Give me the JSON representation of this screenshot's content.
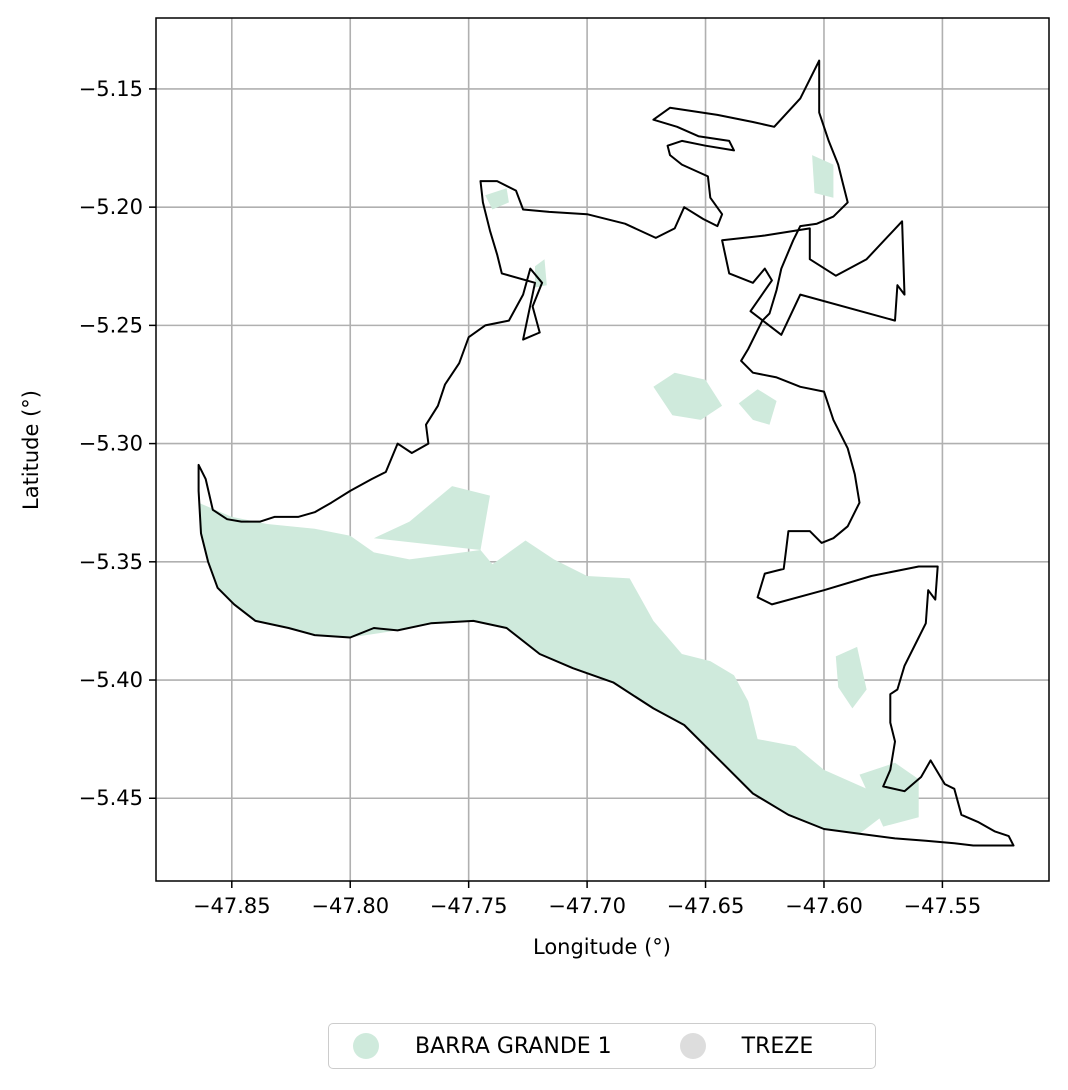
{
  "chart_data": {
    "type": "map",
    "title": "",
    "xlabel": "Longitude (°)",
    "ylabel": "Latitude (°)",
    "xlim": [
      -47.882,
      -47.505
    ],
    "ylim": [
      -5.485,
      -5.12
    ],
    "xticks": [
      -47.85,
      -47.8,
      -47.75,
      -47.7,
      -47.65,
      -47.6,
      -47.55
    ],
    "xtick_labels": [
      "−47.85",
      "−47.80",
      "−47.75",
      "−47.70",
      "−47.65",
      "−47.60",
      "−47.55"
    ],
    "yticks": [
      -5.15,
      -5.2,
      -5.25,
      -5.3,
      -5.35,
      -5.4,
      -5.45
    ],
    "ytick_labels": [
      "−5.15",
      "−5.20",
      "−5.25",
      "−5.30",
      "−5.35",
      "−5.40",
      "−5.45"
    ],
    "grid": true,
    "legend_position": "bottom-center",
    "series": [
      {
        "name": "BARRA GRANDE 1",
        "color": "#cfeadc"
      },
      {
        "name": "TREZE",
        "color": "#dddddd"
      }
    ],
    "boundary_color": "#000000",
    "boundary": [
      [
        -47.864,
        -5.309
      ],
      [
        -47.861,
        -5.315
      ],
      [
        -47.858,
        -5.328
      ],
      [
        -47.852,
        -5.332
      ],
      [
        -47.846,
        -5.333
      ],
      [
        -47.838,
        -5.333
      ],
      [
        -47.832,
        -5.331
      ],
      [
        -47.822,
        -5.331
      ],
      [
        -47.815,
        -5.329
      ],
      [
        -47.808,
        -5.325
      ],
      [
        -47.8,
        -5.32
      ],
      [
        -47.791,
        -5.315
      ],
      [
        -47.785,
        -5.312
      ],
      [
        -47.78,
        -5.3
      ],
      [
        -47.774,
        -5.304
      ],
      [
        -47.767,
        -5.3
      ],
      [
        -47.768,
        -5.292
      ],
      [
        -47.763,
        -5.284
      ],
      [
        -47.76,
        -5.275
      ],
      [
        -47.754,
        -5.266
      ],
      [
        -47.75,
        -5.255
      ],
      [
        -47.743,
        -5.25
      ],
      [
        -47.733,
        -5.248
      ],
      [
        -47.727,
        -5.237
      ],
      [
        -47.724,
        -5.226
      ],
      [
        -47.719,
        -5.232
      ],
      [
        -47.723,
        -5.242
      ],
      [
        -47.72,
        -5.253
      ],
      [
        -47.727,
        -5.256
      ],
      [
        -47.722,
        -5.232
      ],
      [
        -47.736,
        -5.228
      ],
      [
        -47.738,
        -5.22
      ],
      [
        -47.741,
        -5.21
      ],
      [
        -47.744,
        -5.198
      ],
      [
        -47.745,
        -5.189
      ],
      [
        -47.738,
        -5.189
      ],
      [
        -47.73,
        -5.193
      ],
      [
        -47.727,
        -5.201
      ],
      [
        -47.716,
        -5.202
      ],
      [
        -47.7,
        -5.203
      ],
      [
        -47.684,
        -5.207
      ],
      [
        -47.671,
        -5.213
      ],
      [
        -47.663,
        -5.209
      ],
      [
        -47.659,
        -5.2
      ],
      [
        -47.651,
        -5.205
      ],
      [
        -47.645,
        -5.208
      ],
      [
        -47.643,
        -5.203
      ],
      [
        -47.648,
        -5.196
      ],
      [
        -47.649,
        -5.187
      ],
      [
        -47.66,
        -5.182
      ],
      [
        -47.665,
        -5.178
      ],
      [
        -47.666,
        -5.174
      ],
      [
        -47.66,
        -5.172
      ],
      [
        -47.65,
        -5.174
      ],
      [
        -47.638,
        -5.176
      ],
      [
        -47.64,
        -5.172
      ],
      [
        -47.653,
        -5.17
      ],
      [
        -47.662,
        -5.166
      ],
      [
        -47.672,
        -5.163
      ],
      [
        -47.665,
        -5.158
      ],
      [
        -47.645,
        -5.161
      ],
      [
        -47.63,
        -5.164
      ],
      [
        -47.621,
        -5.166
      ],
      [
        -47.61,
        -5.154
      ],
      [
        -47.602,
        -5.138
      ],
      [
        -47.602,
        -5.16
      ],
      [
        -47.598,
        -5.172
      ],
      [
        -47.594,
        -5.182
      ],
      [
        -47.592,
        -5.19
      ],
      [
        -47.59,
        -5.198
      ],
      [
        -47.596,
        -5.204
      ],
      [
        -47.603,
        -5.207
      ],
      [
        -47.61,
        -5.208
      ],
      [
        -47.613,
        -5.214
      ],
      [
        -47.618,
        -5.226
      ],
      [
        -47.62,
        -5.235
      ],
      [
        -47.623,
        -5.245
      ],
      [
        -47.626,
        -5.248
      ],
      [
        -47.628,
        -5.252
      ],
      [
        -47.632,
        -5.26
      ],
      [
        -47.635,
        -5.265
      ],
      [
        -47.63,
        -5.27
      ],
      [
        -47.62,
        -5.272
      ],
      [
        -47.61,
        -5.276
      ],
      [
        -47.6,
        -5.278
      ],
      [
        -47.596,
        -5.29
      ],
      [
        -47.59,
        -5.302
      ],
      [
        -47.587,
        -5.313
      ],
      [
        -47.585,
        -5.325
      ],
      [
        -47.59,
        -5.335
      ],
      [
        -47.596,
        -5.34
      ],
      [
        -47.601,
        -5.342
      ],
      [
        -47.606,
        -5.337
      ],
      [
        -47.615,
        -5.337
      ],
      [
        -47.616,
        -5.345
      ],
      [
        -47.617,
        -5.353
      ],
      [
        -47.625,
        -5.355
      ],
      [
        -47.628,
        -5.365
      ],
      [
        -47.622,
        -5.368
      ],
      [
        -47.6,
        -5.362
      ],
      [
        -47.58,
        -5.356
      ],
      [
        -47.56,
        -5.352
      ],
      [
        -47.552,
        -5.352
      ],
      [
        -47.553,
        -5.366
      ],
      [
        -47.556,
        -5.362
      ],
      [
        -47.557,
        -5.376
      ],
      [
        -47.56,
        -5.382
      ],
      [
        -47.566,
        -5.394
      ],
      [
        -47.569,
        -5.404
      ],
      [
        -47.572,
        -5.406
      ],
      [
        -47.572,
        -5.418
      ],
      [
        -47.57,
        -5.426
      ],
      [
        -47.572,
        -5.438
      ],
      [
        -47.575,
        -5.445
      ],
      [
        -47.566,
        -5.447
      ],
      [
        -47.559,
        -5.441
      ],
      [
        -47.555,
        -5.434
      ],
      [
        -47.549,
        -5.444
      ],
      [
        -47.545,
        -5.446
      ],
      [
        -47.542,
        -5.457
      ],
      [
        -47.535,
        -5.46
      ],
      [
        -47.528,
        -5.464
      ],
      [
        -47.522,
        -5.466
      ],
      [
        -47.52,
        -5.47
      ],
      [
        -47.537,
        -5.47
      ],
      [
        -47.545,
        -5.469
      ],
      [
        -47.557,
        -5.468
      ],
      [
        -47.57,
        -5.467
      ],
      [
        -47.585,
        -5.465
      ],
      [
        -47.6,
        -5.463
      ],
      [
        -47.615,
        -5.457
      ],
      [
        -47.63,
        -5.448
      ],
      [
        -47.644,
        -5.434
      ],
      [
        -47.659,
        -5.419
      ],
      [
        -47.672,
        -5.412
      ],
      [
        -47.689,
        -5.401
      ],
      [
        -47.706,
        -5.395
      ],
      [
        -47.72,
        -5.389
      ],
      [
        -47.734,
        -5.378
      ],
      [
        -47.748,
        -5.375
      ],
      [
        -47.766,
        -5.376
      ],
      [
        -47.78,
        -5.379
      ],
      [
        -47.79,
        -5.378
      ],
      [
        -47.8,
        -5.382
      ],
      [
        -47.815,
        -5.381
      ],
      [
        -47.826,
        -5.378
      ],
      [
        -47.84,
        -5.375
      ],
      [
        -47.849,
        -5.368
      ],
      [
        -47.856,
        -5.361
      ],
      [
        -47.86,
        -5.35
      ],
      [
        -47.863,
        -5.338
      ],
      [
        -47.864,
        -5.32
      ]
    ],
    "inner_boundary": [
      [
        -47.567,
        -5.206
      ],
      [
        -47.566,
        -5.237
      ],
      [
        -47.569,
        -5.233
      ],
      [
        -47.57,
        -5.248
      ],
      [
        -47.61,
        -5.237
      ],
      [
        -47.618,
        -5.254
      ],
      [
        -47.631,
        -5.244
      ],
      [
        -47.622,
        -5.231
      ],
      [
        -47.625,
        -5.226
      ],
      [
        -47.63,
        -5.232
      ],
      [
        -47.64,
        -5.228
      ],
      [
        -47.643,
        -5.214
      ],
      [
        -47.625,
        -5.212
      ],
      [
        -47.606,
        -5.209
      ],
      [
        -47.606,
        -5.222
      ],
      [
        -47.595,
        -5.229
      ],
      [
        -47.582,
        -5.222
      ],
      [
        -47.567,
        -5.206
      ]
    ],
    "regions_barra_grande_1": [
      [
        [
          -47.864,
          -5.325
        ],
        [
          -47.85,
          -5.331
        ],
        [
          -47.835,
          -5.334
        ],
        [
          -47.815,
          -5.336
        ],
        [
          -47.8,
          -5.339
        ],
        [
          -47.79,
          -5.346
        ],
        [
          -47.775,
          -5.349
        ],
        [
          -47.76,
          -5.347
        ],
        [
          -47.745,
          -5.345
        ],
        [
          -47.74,
          -5.351
        ],
        [
          -47.726,
          -5.341
        ],
        [
          -47.714,
          -5.349
        ],
        [
          -47.7,
          -5.356
        ],
        [
          -47.682,
          -5.357
        ],
        [
          -47.672,
          -5.375
        ],
        [
          -47.66,
          -5.389
        ],
        [
          -47.648,
          -5.392
        ],
        [
          -47.638,
          -5.398
        ],
        [
          -47.632,
          -5.409
        ],
        [
          -47.628,
          -5.425
        ],
        [
          -47.612,
          -5.428
        ],
        [
          -47.6,
          -5.438
        ],
        [
          -47.582,
          -5.446
        ],
        [
          -47.572,
          -5.455
        ],
        [
          -47.585,
          -5.465
        ],
        [
          -47.6,
          -5.463
        ],
        [
          -47.615,
          -5.457
        ],
        [
          -47.63,
          -5.448
        ],
        [
          -47.644,
          -5.434
        ],
        [
          -47.659,
          -5.419
        ],
        [
          -47.672,
          -5.412
        ],
        [
          -47.689,
          -5.401
        ],
        [
          -47.706,
          -5.395
        ],
        [
          -47.72,
          -5.389
        ],
        [
          -47.734,
          -5.378
        ],
        [
          -47.748,
          -5.375
        ],
        [
          -47.766,
          -5.376
        ],
        [
          -47.78,
          -5.379
        ],
        [
          -47.8,
          -5.382
        ],
        [
          -47.815,
          -5.381
        ],
        [
          -47.826,
          -5.378
        ],
        [
          -47.84,
          -5.375
        ],
        [
          -47.849,
          -5.368
        ],
        [
          -47.856,
          -5.361
        ],
        [
          -47.86,
          -5.35
        ],
        [
          -47.863,
          -5.338
        ]
      ],
      [
        [
          -47.79,
          -5.34
        ],
        [
          -47.775,
          -5.333
        ],
        [
          -47.757,
          -5.318
        ],
        [
          -47.741,
          -5.322
        ],
        [
          -47.745,
          -5.345
        ]
      ],
      [
        [
          -47.672,
          -5.276
        ],
        [
          -47.663,
          -5.27
        ],
        [
          -47.65,
          -5.273
        ],
        [
          -47.643,
          -5.284
        ],
        [
          -47.652,
          -5.29
        ],
        [
          -47.664,
          -5.288
        ]
      ],
      [
        [
          -47.596,
          -5.182
        ],
        [
          -47.605,
          -5.178
        ],
        [
          -47.604,
          -5.194
        ],
        [
          -47.596,
          -5.196
        ]
      ],
      [
        [
          -47.585,
          -5.44
        ],
        [
          -47.57,
          -5.435
        ],
        [
          -47.56,
          -5.442
        ],
        [
          -47.56,
          -5.458
        ],
        [
          -47.575,
          -5.462
        ]
      ],
      [
        [
          -47.595,
          -5.39
        ],
        [
          -47.586,
          -5.386
        ],
        [
          -47.582,
          -5.404
        ],
        [
          -47.588,
          -5.412
        ],
        [
          -47.594,
          -5.403
        ]
      ],
      [
        [
          -47.63,
          -5.29
        ],
        [
          -47.636,
          -5.283
        ],
        [
          -47.628,
          -5.277
        ],
        [
          -47.62,
          -5.282
        ],
        [
          -47.623,
          -5.292
        ]
      ],
      [
        [
          -47.743,
          -5.195
        ],
        [
          -47.734,
          -5.192
        ],
        [
          -47.733,
          -5.198
        ],
        [
          -47.74,
          -5.201
        ]
      ],
      [
        [
          -47.722,
          -5.225
        ],
        [
          -47.718,
          -5.222
        ],
        [
          -47.717,
          -5.233
        ],
        [
          -47.722,
          -5.234
        ]
      ]
    ]
  },
  "legend": {
    "items": [
      {
        "label": "BARRA GRANDE 1",
        "color": "#cfeadc"
      },
      {
        "label": "TREZE",
        "color": "#dddddd"
      }
    ]
  }
}
